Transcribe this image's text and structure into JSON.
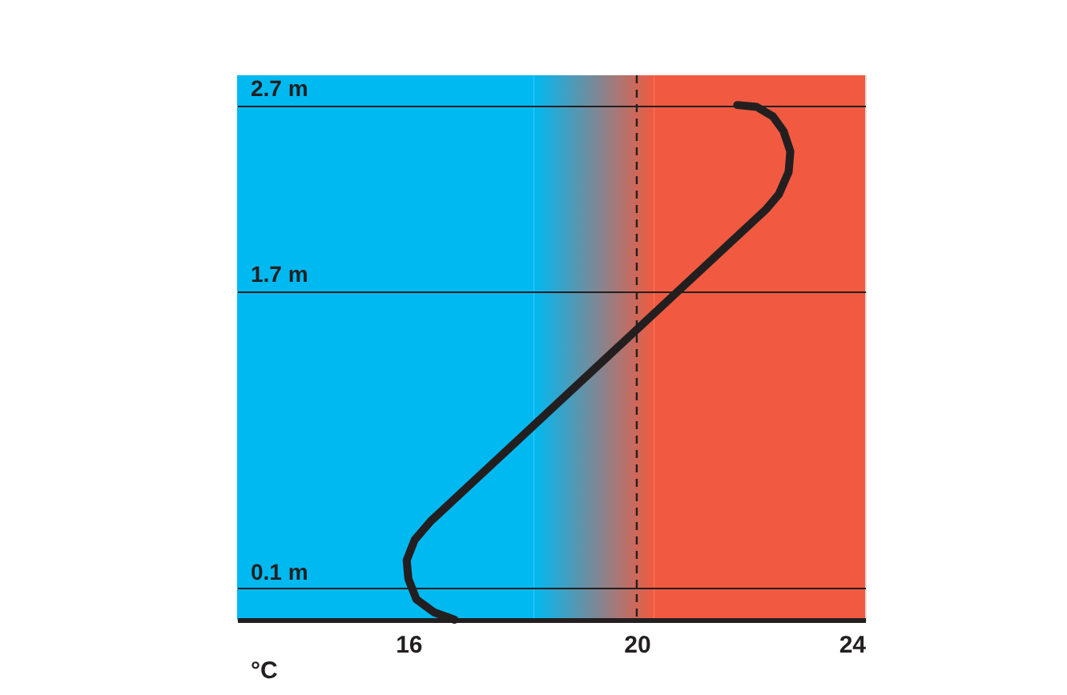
{
  "chart_data": {
    "type": "line",
    "xlabel": "°C",
    "x": [
      21.76,
      22.1,
      22.38,
      22.57,
      22.69,
      22.66,
      22.49,
      22.27,
      16.39,
      16.11,
      15.97,
      16.0,
      16.14,
      16.45,
      16.81
    ],
    "series": [
      {
        "color": "#231f20",
        "values": [
          2.7,
          2.69,
          2.64,
          2.56,
          2.45,
          2.34,
          2.22,
          2.14,
          0.46,
          0.36,
          0.25,
          0.15,
          0.04,
          -0.03,
          -0.07
        ]
      }
    ],
    "xlim": [
      13,
      24
    ],
    "xticks": [
      16,
      20,
      24
    ],
    "ylim": [
      -0.07,
      2.86
    ],
    "yticks": [
      {
        "value": 0.1,
        "label": "0.1 m"
      },
      {
        "value": 1.7,
        "label": "1.7 m"
      },
      {
        "value": 2.7,
        "label": "2.7 m"
      }
    ],
    "grid": "y",
    "marker": "none",
    "line_style": "solid",
    "ref_lines": [
      {
        "axis": "x",
        "value": 20,
        "line_style": "dashed",
        "color": "#231f20"
      }
    ],
    "bands": [
      {
        "axis": "x",
        "from": 13,
        "to": 18.2,
        "color": "#00b9f1"
      },
      {
        "axis": "x",
        "from": 18.2,
        "to": 20.3
      },
      {
        "axis": "x",
        "from": 20.3,
        "to": 24,
        "color": "#f15a40"
      }
    ]
  }
}
